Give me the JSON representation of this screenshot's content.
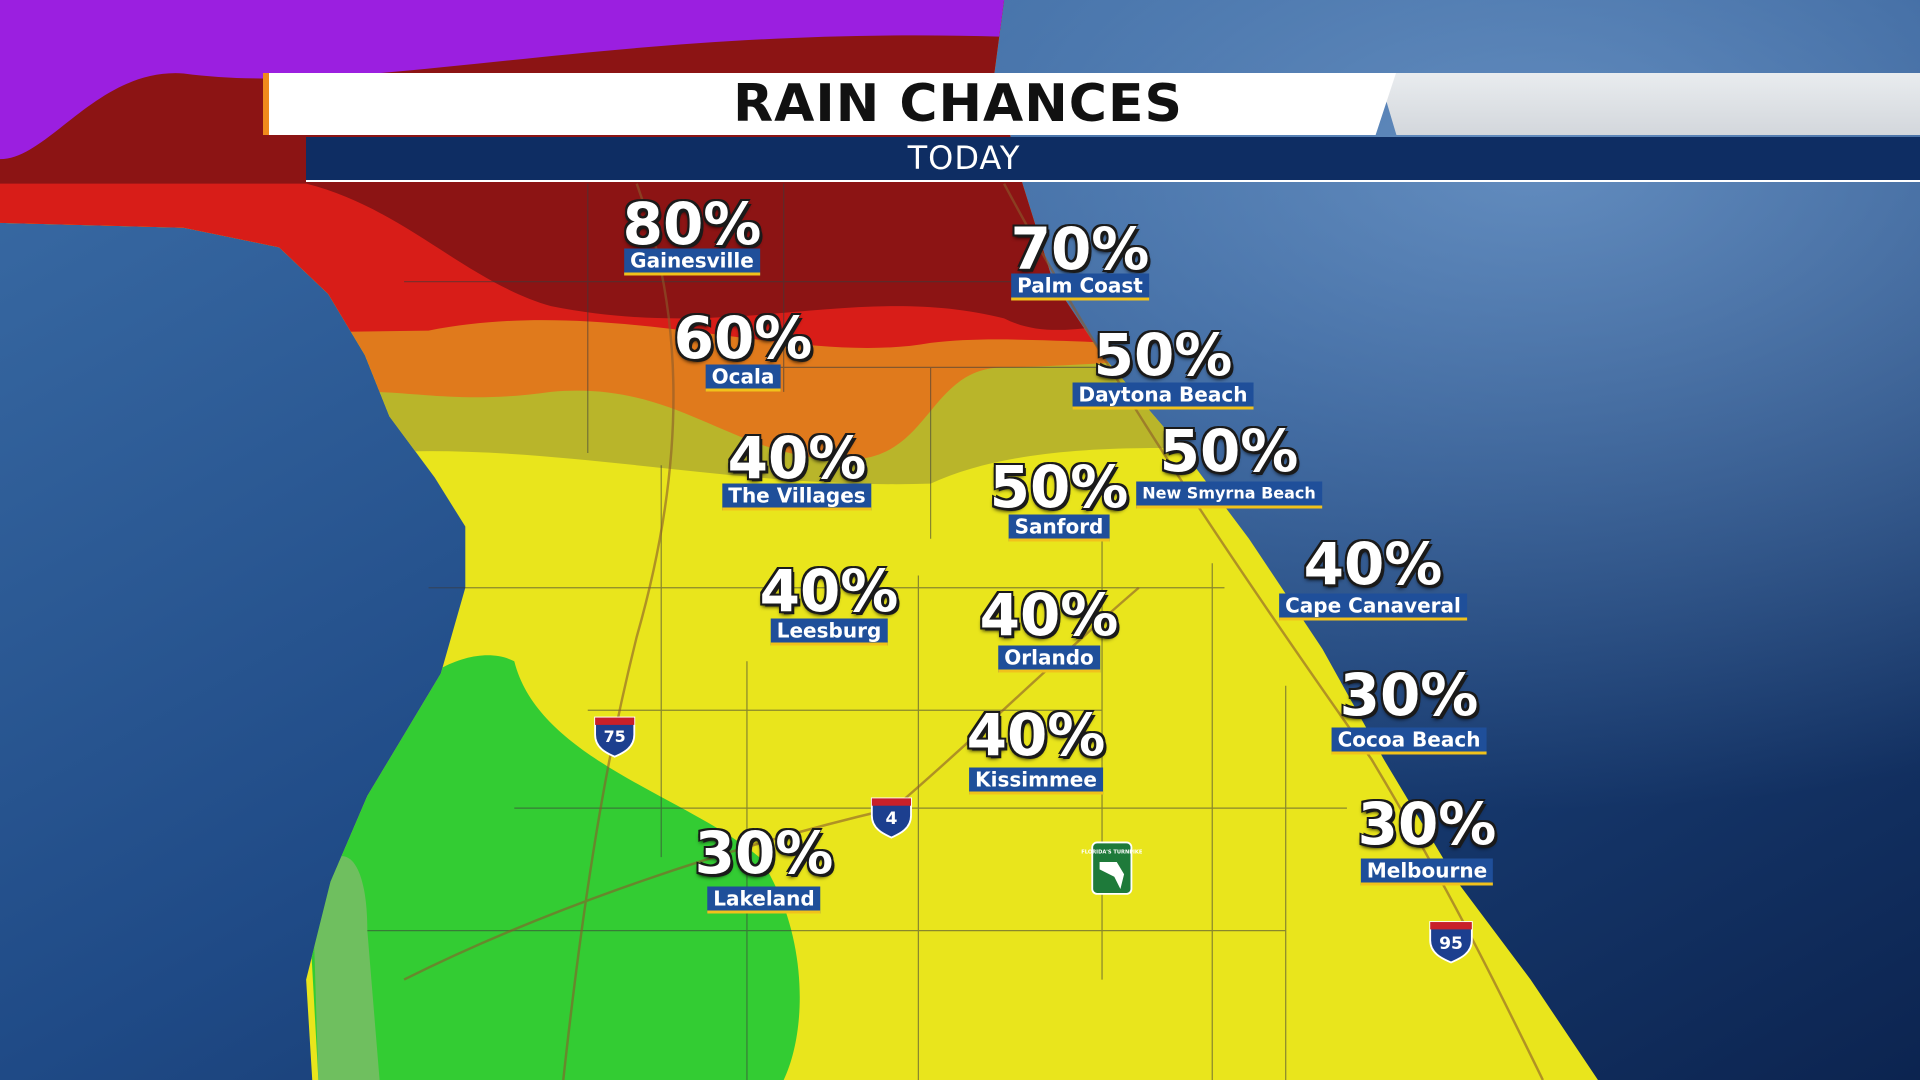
{
  "header": {
    "title": "RAIN CHANCES",
    "subtitle": "TODAY"
  },
  "cities": [
    {
      "name": "Gainesville",
      "chance": "80%"
    },
    {
      "name": "Palm Coast",
      "chance": "70%"
    },
    {
      "name": "Ocala",
      "chance": "60%"
    },
    {
      "name": "Daytona Beach",
      "chance": "50%"
    },
    {
      "name": "The Villages",
      "chance": "40%"
    },
    {
      "name": "New Smyrna Beach",
      "chance": "50%"
    },
    {
      "name": "Sanford",
      "chance": "50%"
    },
    {
      "name": "Cape Canaveral",
      "chance": "40%"
    },
    {
      "name": "Leesburg",
      "chance": "40%"
    },
    {
      "name": "Orlando",
      "chance": "40%"
    },
    {
      "name": "Cocoa Beach",
      "chance": "30%"
    },
    {
      "name": "Kissimmee",
      "chance": "40%"
    },
    {
      "name": "Melbourne",
      "chance": "30%"
    },
    {
      "name": "Lakeland",
      "chance": "30%"
    }
  ],
  "shields": {
    "i75": "75",
    "i4": "4",
    "i95": "95",
    "turnpike": "FLORIDA'S TURNPIKE"
  }
}
